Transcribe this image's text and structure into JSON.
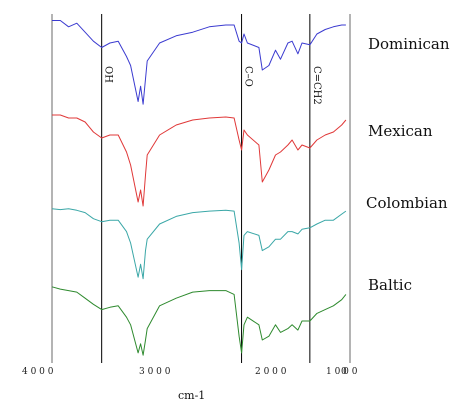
{
  "chart_data": {
    "type": "line",
    "title": "",
    "xlabel": "cm-1",
    "ylabel": "",
    "xlim": [
      4000,
      400
    ],
    "x_reversed": true,
    "grid": false,
    "x_tick_labels": [
      "4 0 0 0",
      "3 0 0 0",
      "2 0 0 0",
      "1 0 0 0"
    ],
    "x_tick_values": [
      4000,
      3000,
      2000,
      1000
    ],
    "marker_lines": [
      {
        "label": "OH",
        "x": 3400
      },
      {
        "label": "C–O",
        "x": 1710
      },
      {
        "label": "C=CH2",
        "x": 885
      }
    ],
    "series": [
      {
        "name": "Dominican",
        "color": "#3b3bd0",
        "points": [
          [
            4000,
            0.05
          ],
          [
            3900,
            0.05
          ],
          [
            3800,
            0.12
          ],
          [
            3700,
            0.08
          ],
          [
            3600,
            0.18
          ],
          [
            3500,
            0.28
          ],
          [
            3400,
            0.35
          ],
          [
            3300,
            0.3
          ],
          [
            3200,
            0.28
          ],
          [
            3100,
            0.45
          ],
          [
            3050,
            0.55
          ],
          [
            2960,
            0.95
          ],
          [
            2930,
            0.78
          ],
          [
            2900,
            0.98
          ],
          [
            2870,
            0.7
          ],
          [
            2850,
            0.5
          ],
          [
            2700,
            0.3
          ],
          [
            2500,
            0.22
          ],
          [
            2300,
            0.18
          ],
          [
            2100,
            0.12
          ],
          [
            1900,
            0.1
          ],
          [
            1800,
            0.1
          ],
          [
            1740,
            0.28
          ],
          [
            1710,
            0.3
          ],
          [
            1680,
            0.2
          ],
          [
            1640,
            0.3
          ],
          [
            1500,
            0.35
          ],
          [
            1460,
            0.6
          ],
          [
            1380,
            0.55
          ],
          [
            1300,
            0.38
          ],
          [
            1240,
            0.48
          ],
          [
            1150,
            0.3
          ],
          [
            1100,
            0.28
          ],
          [
            1030,
            0.42
          ],
          [
            980,
            0.3
          ],
          [
            885,
            0.32
          ],
          [
            800,
            0.2
          ],
          [
            700,
            0.15
          ],
          [
            600,
            0.12
          ],
          [
            500,
            0.1
          ],
          [
            450,
            0.1
          ]
        ]
      },
      {
        "name": "Mexican",
        "color": "#e03838",
        "points": [
          [
            4000,
            0.05
          ],
          [
            3900,
            0.05
          ],
          [
            3800,
            0.08
          ],
          [
            3700,
            0.08
          ],
          [
            3600,
            0.12
          ],
          [
            3500,
            0.22
          ],
          [
            3400,
            0.28
          ],
          [
            3300,
            0.25
          ],
          [
            3200,
            0.25
          ],
          [
            3100,
            0.42
          ],
          [
            3050,
            0.55
          ],
          [
            2960,
            0.92
          ],
          [
            2930,
            0.8
          ],
          [
            2900,
            0.96
          ],
          [
            2870,
            0.65
          ],
          [
            2850,
            0.45
          ],
          [
            2700,
            0.25
          ],
          [
            2500,
            0.15
          ],
          [
            2300,
            0.1
          ],
          [
            2100,
            0.08
          ],
          [
            1900,
            0.07
          ],
          [
            1800,
            0.08
          ],
          [
            1740,
            0.3
          ],
          [
            1710,
            0.4
          ],
          [
            1680,
            0.2
          ],
          [
            1640,
            0.25
          ],
          [
            1500,
            0.35
          ],
          [
            1460,
            0.72
          ],
          [
            1380,
            0.6
          ],
          [
            1300,
            0.45
          ],
          [
            1240,
            0.42
          ],
          [
            1150,
            0.35
          ],
          [
            1100,
            0.3
          ],
          [
            1030,
            0.4
          ],
          [
            980,
            0.35
          ],
          [
            885,
            0.38
          ],
          [
            800,
            0.3
          ],
          [
            700,
            0.25
          ],
          [
            600,
            0.22
          ],
          [
            500,
            0.15
          ],
          [
            450,
            0.1
          ]
        ]
      },
      {
        "name": "Colombian",
        "color": "#3aa7a7",
        "points": [
          [
            4000,
            0.05
          ],
          [
            3900,
            0.06
          ],
          [
            3800,
            0.05
          ],
          [
            3700,
            0.07
          ],
          [
            3600,
            0.1
          ],
          [
            3500,
            0.18
          ],
          [
            3400,
            0.22
          ],
          [
            3300,
            0.2
          ],
          [
            3200,
            0.2
          ],
          [
            3100,
            0.35
          ],
          [
            3050,
            0.5
          ],
          [
            2960,
            0.95
          ],
          [
            2930,
            0.78
          ],
          [
            2900,
            0.97
          ],
          [
            2870,
            0.6
          ],
          [
            2850,
            0.45
          ],
          [
            2700,
            0.25
          ],
          [
            2500,
            0.15
          ],
          [
            2300,
            0.1
          ],
          [
            2100,
            0.08
          ],
          [
            1900,
            0.07
          ],
          [
            1800,
            0.08
          ],
          [
            1740,
            0.5
          ],
          [
            1710,
            0.85
          ],
          [
            1680,
            0.4
          ],
          [
            1640,
            0.35
          ],
          [
            1500,
            0.4
          ],
          [
            1460,
            0.6
          ],
          [
            1380,
            0.55
          ],
          [
            1300,
            0.45
          ],
          [
            1240,
            0.45
          ],
          [
            1150,
            0.35
          ],
          [
            1100,
            0.35
          ],
          [
            1030,
            0.38
          ],
          [
            980,
            0.32
          ],
          [
            885,
            0.3
          ],
          [
            800,
            0.25
          ],
          [
            700,
            0.2
          ],
          [
            600,
            0.2
          ],
          [
            500,
            0.12
          ],
          [
            450,
            0.08
          ]
        ]
      },
      {
        "name": "Baltic",
        "color": "#2e8a2e",
        "points": [
          [
            4000,
            0.05
          ],
          [
            3900,
            0.08
          ],
          [
            3800,
            0.1
          ],
          [
            3700,
            0.12
          ],
          [
            3600,
            0.2
          ],
          [
            3500,
            0.28
          ],
          [
            3400,
            0.35
          ],
          [
            3300,
            0.32
          ],
          [
            3200,
            0.3
          ],
          [
            3100,
            0.45
          ],
          [
            3050,
            0.55
          ],
          [
            2960,
            0.92
          ],
          [
            2930,
            0.8
          ],
          [
            2900,
            0.95
          ],
          [
            2870,
            0.75
          ],
          [
            2850,
            0.6
          ],
          [
            2700,
            0.3
          ],
          [
            2500,
            0.2
          ],
          [
            2300,
            0.12
          ],
          [
            2100,
            0.1
          ],
          [
            1900,
            0.1
          ],
          [
            1800,
            0.15
          ],
          [
            1740,
            0.7
          ],
          [
            1710,
            0.92
          ],
          [
            1680,
            0.55
          ],
          [
            1640,
            0.45
          ],
          [
            1500,
            0.55
          ],
          [
            1460,
            0.75
          ],
          [
            1380,
            0.7
          ],
          [
            1300,
            0.55
          ],
          [
            1240,
            0.65
          ],
          [
            1150,
            0.6
          ],
          [
            1100,
            0.55
          ],
          [
            1030,
            0.62
          ],
          [
            980,
            0.5
          ],
          [
            885,
            0.5
          ],
          [
            800,
            0.4
          ],
          [
            700,
            0.35
          ],
          [
            600,
            0.3
          ],
          [
            500,
            0.22
          ],
          [
            450,
            0.15
          ]
        ]
      }
    ]
  }
}
